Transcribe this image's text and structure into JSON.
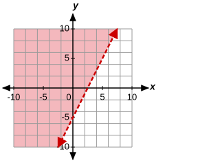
{
  "chart_data": {
    "type": "line",
    "x_label": "x",
    "y_label": "y",
    "x": [
      -2.5,
      7.5
    ],
    "series": [
      {
        "values": [
          -10,
          10
        ],
        "color": "#cc0000",
        "dashed": true,
        "shade": "left",
        "shade_color": "#f4b8bd"
      }
    ],
    "xlim": [
      -10,
      10
    ],
    "ylim": [
      -10,
      10
    ],
    "xticks": [
      -10,
      -5,
      0,
      5,
      10
    ],
    "yticks": [
      -10,
      -5,
      5,
      10
    ],
    "xgrid": [
      -10,
      -8,
      -6,
      -4,
      -2,
      0,
      2,
      4,
      6,
      8,
      10
    ],
    "ygrid": [
      -10,
      -8,
      -6,
      -4,
      -2,
      0,
      2,
      4,
      6,
      8,
      10
    ],
    "grid": true
  }
}
